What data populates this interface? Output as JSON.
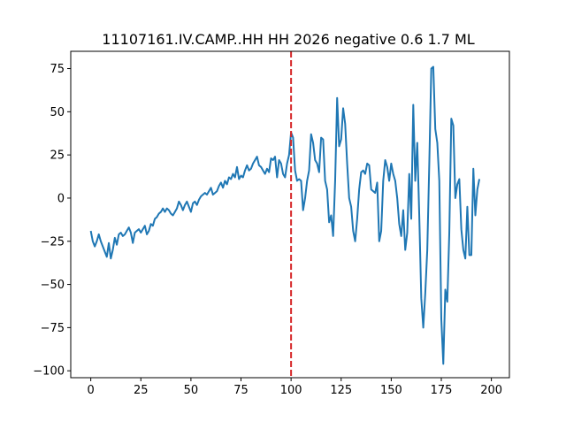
{
  "chart_data": {
    "type": "line",
    "title": "11107161.IV.CAMP..HH HH 2026 negative 0.6 1.7 ML",
    "xlabel": "",
    "ylabel": "",
    "xlim": [
      -10,
      209
    ],
    "ylim": [
      -104,
      85
    ],
    "x_ticks": [
      0,
      25,
      50,
      75,
      100,
      125,
      150,
      175,
      200
    ],
    "y_ticks": [
      -100,
      -75,
      -50,
      -25,
      0,
      25,
      50,
      75
    ],
    "grid": false,
    "line_color": "#1f77b4",
    "marker_line": {
      "x": 100,
      "color": "#d62728",
      "style": "dashed"
    },
    "series": [
      {
        "x_start": 0,
        "values": [
          -19,
          -25,
          -28,
          -25,
          -21,
          -25,
          -28,
          -31,
          -34,
          -26,
          -35,
          -30,
          -23,
          -27,
          -21,
          -20,
          -22,
          -21,
          -19,
          -17,
          -20,
          -26,
          -20,
          -19,
          -18,
          -20,
          -18,
          -16,
          -21,
          -19,
          -15,
          -16,
          -12,
          -11,
          -9,
          -8,
          -6,
          -8,
          -6,
          -7,
          -9,
          -10,
          -8,
          -6,
          -2,
          -4,
          -7,
          -4,
          -2,
          -5,
          -8,
          -3,
          -2,
          -4,
          -1,
          1,
          2,
          3,
          2,
          4,
          6,
          2,
          3,
          4,
          7,
          9,
          6,
          10,
          8,
          12,
          11,
          14,
          12,
          18,
          11,
          13,
          12,
          16,
          19,
          16,
          17,
          20,
          22,
          24,
          19,
          18,
          16,
          14,
          17,
          15,
          23,
          22,
          24,
          12,
          22,
          20,
          14,
          12,
          20,
          25,
          38,
          35,
          16,
          10,
          11,
          10,
          -7,
          0,
          10,
          16,
          37,
          32,
          22,
          20,
          15,
          35,
          34,
          10,
          5,
          -14,
          -10,
          -22,
          10,
          58,
          30,
          34,
          52,
          43,
          20,
          0,
          -5,
          -19,
          -25,
          -12,
          5,
          15,
          16,
          14,
          20,
          19,
          5,
          4,
          3,
          9,
          -25,
          -19,
          10,
          22,
          18,
          10,
          20,
          14,
          10,
          0,
          -15,
          -22,
          -7,
          -30,
          -20,
          14,
          -12,
          54,
          10,
          32,
          -10,
          -58,
          -75,
          -55,
          -30,
          20,
          75,
          76,
          40,
          32,
          10,
          -70,
          -96,
          -53,
          -60,
          -20,
          46,
          42,
          0,
          8,
          11,
          -18,
          -30,
          -35,
          -5,
          -33,
          -33,
          17,
          -10,
          5,
          11
        ]
      }
    ]
  }
}
